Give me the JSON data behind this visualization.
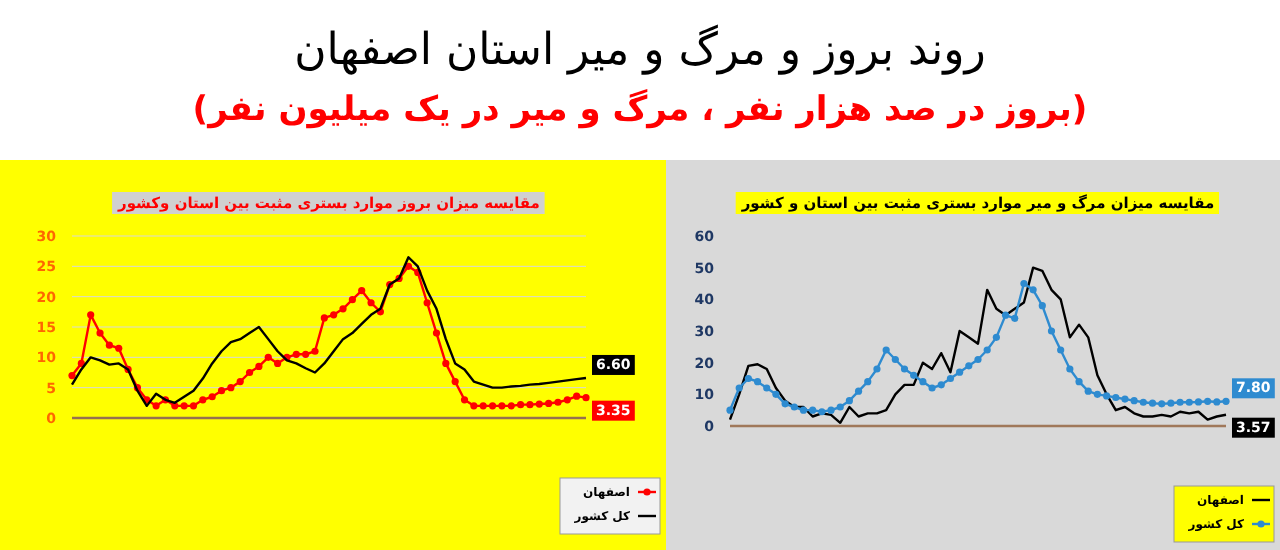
{
  "chart_data": [
    {
      "type": "other",
      "title": "روند بروز و مرگ و میر استان اصفهان",
      "subtitle": "(بروز در صد هزار نفر ، مرگ و میر در یک میلیون نفر)"
    },
    {
      "type": "line",
      "title": "مقایسه میزان بروز موارد بستری مثبت بین استان وکشور",
      "categories": [
        null,
        null,
        null,
        null,
        null,
        null,
        null,
        null,
        null,
        null,
        null,
        null,
        null,
        null,
        null,
        null,
        null,
        null,
        null,
        null,
        null,
        null,
        null,
        null,
        null,
        null,
        null,
        null,
        null,
        null,
        null,
        null,
        null,
        null,
        null,
        null,
        null,
        null,
        null,
        null,
        null,
        null,
        null,
        null,
        null,
        null,
        null,
        null,
        null,
        null,
        null,
        null,
        null,
        null,
        null,
        null
      ],
      "ylim": [
        0,
        30
      ],
      "yticks": [
        0,
        5,
        10,
        15,
        20,
        25,
        30
      ],
      "grid": "y",
      "legend": "bottom right",
      "series": [
        {
          "name": "اصفهان",
          "color": "#ff0000",
          "marker": "circle",
          "values": [
            7,
            9,
            17,
            14,
            12,
            11.5,
            8,
            5,
            3,
            2,
            3,
            2,
            2,
            2,
            3,
            3.5,
            4.5,
            5,
            6,
            7.5,
            8.5,
            10,
            9,
            10,
            10.5,
            10.5,
            11,
            16.5,
            17,
            18,
            19.5,
            21,
            19,
            17.5,
            22,
            23,
            25,
            24,
            19,
            14,
            9,
            6,
            3,
            2,
            2,
            2,
            2,
            2,
            2.2,
            2.2,
            2.3,
            2.4,
            2.6,
            3,
            3.6,
            3.35
          ],
          "value_labels": [
            null,
            null,
            null,
            null,
            null,
            null,
            null,
            null,
            null,
            null,
            null,
            null,
            null,
            null,
            null,
            null,
            null,
            null,
            null,
            null,
            null,
            null,
            null,
            null,
            null,
            null,
            null,
            null,
            null,
            null,
            null,
            null,
            null,
            null,
            null,
            null,
            null,
            null,
            null,
            null,
            null,
            null,
            null,
            null,
            null,
            null,
            null,
            null,
            null,
            null,
            null,
            null,
            null,
            null,
            null,
            "3.35"
          ]
        },
        {
          "name": "کل کشور",
          "color": "#000000",
          "marker": "none",
          "values": [
            5.5,
            8,
            10,
            9.5,
            8.8,
            9,
            8,
            4.5,
            2,
            4,
            3,
            2.5,
            3.5,
            4.5,
            6.5,
            9,
            11,
            12.5,
            13,
            14,
            15,
            13,
            11,
            9.5,
            9,
            8.2,
            7.5,
            9,
            11,
            13,
            14,
            15.5,
            17,
            18,
            22,
            23,
            26.5,
            25,
            21,
            18,
            13,
            9,
            8,
            6,
            5.5,
            5,
            5,
            5.2,
            5.3,
            5.5,
            5.6,
            5.8,
            6,
            6.2,
            6.4,
            6.6
          ],
          "value_labels": [
            null,
            null,
            null,
            null,
            null,
            null,
            null,
            null,
            null,
            null,
            null,
            null,
            null,
            null,
            null,
            null,
            null,
            null,
            null,
            null,
            null,
            null,
            null,
            null,
            null,
            null,
            null,
            null,
            null,
            null,
            null,
            null,
            null,
            null,
            null,
            null,
            null,
            null,
            null,
            null,
            null,
            null,
            null,
            null,
            null,
            null,
            null,
            null,
            null,
            null,
            null,
            null,
            null,
            null,
            null,
            "6.60"
          ]
        }
      ]
    },
    {
      "type": "line",
      "title": "مقایسه میزان مرگ و میر موارد بستری مثبت بین استان و کشور",
      "categories": [
        null,
        null,
        null,
        null,
        null,
        null,
        null,
        null,
        null,
        null,
        null,
        null,
        null,
        null,
        null,
        null,
        null,
        null,
        null,
        null,
        null,
        null,
        null,
        null,
        null,
        null,
        null,
        null,
        null,
        null,
        null,
        null,
        null,
        null,
        null,
        null,
        null,
        null,
        null,
        null,
        null,
        null,
        null,
        null,
        null,
        null,
        null,
        null,
        null,
        null,
        null,
        null,
        null,
        null,
        null
      ],
      "ylim": [
        0,
        60
      ],
      "yticks": [
        0,
        10,
        20,
        30,
        40,
        50,
        60
      ],
      "legend": "bottom right",
      "series": [
        {
          "name": "اصفهان",
          "color": "#000000",
          "marker": "none",
          "values": [
            2,
            10,
            19,
            19.5,
            18,
            12,
            8,
            6,
            6,
            3,
            4,
            3.5,
            1,
            6,
            3,
            4,
            4,
            5,
            10,
            13,
            13,
            20,
            18,
            23,
            17,
            30,
            28,
            26,
            43,
            37,
            35,
            37,
            39,
            50,
            49,
            43,
            40,
            28,
            32,
            28,
            16,
            10,
            5,
            6,
            4,
            3,
            3,
            3.5,
            3,
            4.5,
            4,
            4.5,
            2,
            3,
            3.57
          ],
          "value_labels": [
            null,
            null,
            null,
            null,
            null,
            null,
            null,
            null,
            null,
            null,
            null,
            null,
            null,
            null,
            null,
            null,
            null,
            null,
            null,
            null,
            null,
            null,
            null,
            null,
            null,
            null,
            null,
            null,
            null,
            null,
            null,
            null,
            null,
            null,
            null,
            null,
            null,
            null,
            null,
            null,
            null,
            null,
            null,
            null,
            null,
            null,
            null,
            null,
            null,
            null,
            null,
            null,
            null,
            null,
            "3.57"
          ]
        },
        {
          "name": "کل کشور",
          "color": "#2e8bd0",
          "marker": "circle",
          "values": [
            5,
            12,
            15,
            14,
            12,
            10,
            7,
            6,
            5,
            5,
            4.5,
            5,
            6,
            8,
            11,
            14,
            18,
            24,
            21,
            18,
            16,
            14,
            12,
            13,
            15,
            17,
            19,
            21,
            24,
            28,
            35,
            34,
            45,
            43,
            38,
            30,
            24,
            18,
            14,
            11,
            10,
            9.5,
            9,
            8.5,
            8,
            7.5,
            7.2,
            7,
            7.2,
            7.5,
            7.5,
            7.6,
            7.8,
            7.6,
            7.8
          ],
          "value_labels": [
            null,
            null,
            null,
            null,
            null,
            null,
            null,
            null,
            null,
            null,
            null,
            null,
            null,
            null,
            null,
            null,
            null,
            null,
            null,
            null,
            null,
            null,
            null,
            null,
            null,
            null,
            null,
            null,
            null,
            null,
            null,
            null,
            null,
            null,
            null,
            null,
            null,
            null,
            null,
            null,
            null,
            null,
            null,
            null,
            null,
            null,
            null,
            null,
            null,
            null,
            null,
            null,
            null,
            null,
            "7.80"
          ]
        }
      ]
    }
  ]
}
